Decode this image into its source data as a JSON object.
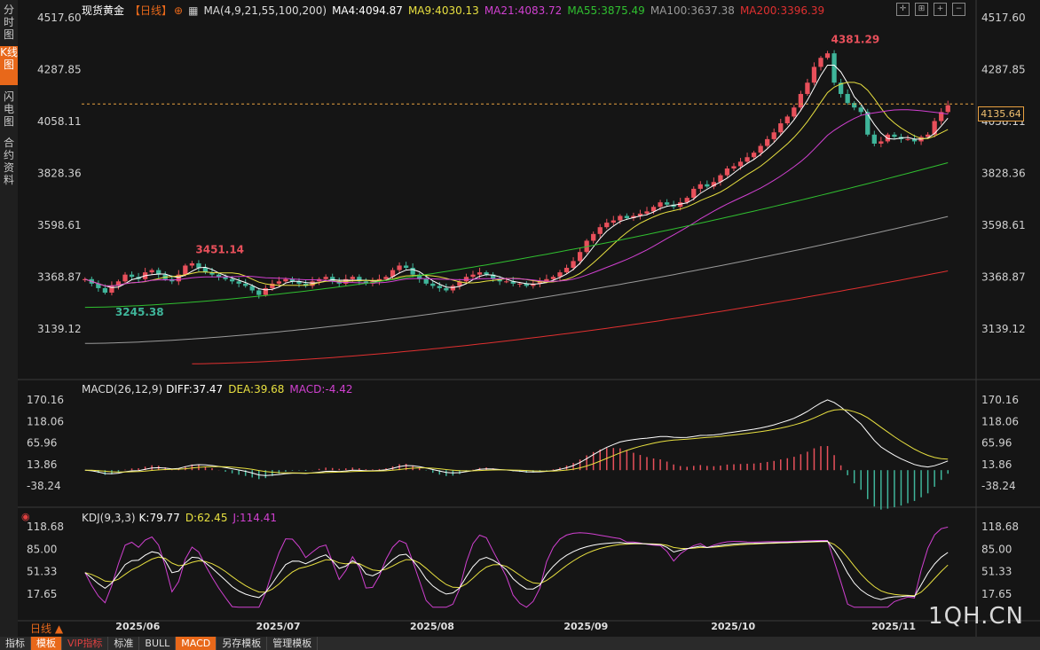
{
  "sidebar": {
    "tabs": [
      {
        "label": "分时图",
        "active": false
      },
      {
        "label": "K线图",
        "active": true
      },
      {
        "label": "闪电图",
        "active": false
      },
      {
        "label": "合约资料",
        "active": false
      }
    ]
  },
  "header": {
    "title": "现货黄金",
    "period_tag": "【日线】",
    "ma_label": "MA(4,9,21,55,100,200)",
    "ma4": "MA4:4094.87",
    "ma9": "MA9:4030.13",
    "ma21": "MA21:4083.72",
    "ma55": "MA55:3875.49",
    "ma100": "MA100:3637.38",
    "ma200": "MA200:3396.39"
  },
  "macd_header": {
    "label": "MACD(26,12,9)",
    "diff": "DIFF:37.47",
    "dea": "DEA:39.68",
    "macd": "MACD:-4.42"
  },
  "kdj_header": {
    "label": "KDJ(9,3,3)",
    "k": "K:79.77",
    "d": "D:62.45",
    "j": "J:114.41"
  },
  "current_price": "4135.64",
  "period_label": "日线 ▲",
  "watermark": "1QH.CN",
  "bottom_tabs": [
    {
      "label": "指标",
      "style": ""
    },
    {
      "label": "模板",
      "style": "hl"
    },
    {
      "label": "VIP指标",
      "style": "vip"
    },
    {
      "label": "标准",
      "style": ""
    },
    {
      "label": "BULL",
      "style": ""
    },
    {
      "label": "MACD",
      "style": "hl"
    },
    {
      "label": "另存模板",
      "style": ""
    },
    {
      "label": "管理模板",
      "style": ""
    }
  ],
  "colors": {
    "up": "#e8505b",
    "down": "#3fb59a",
    "ma4": "#ffffff",
    "ma9": "#e8e040",
    "ma21": "#d040d0",
    "ma55": "#30c030",
    "ma100": "#9a9a9a",
    "ma200": "#e03030",
    "diff": "#ffffff",
    "dea": "#e8e040",
    "j": "#d040d0"
  },
  "chart_data": {
    "type": "candlestick",
    "y_ticks": [
      "4517.60",
      "4287.85",
      "4058.11",
      "3828.36",
      "3598.61",
      "3368.87",
      "3139.12"
    ],
    "ylim": [
      3139.12,
      4517.6
    ],
    "x_ticks": [
      "2025/06",
      "2025/07",
      "2025/08",
      "2025/09",
      "2025/10",
      "2025/11"
    ],
    "annotations": [
      {
        "text": "4381.29",
        "value": 4381.29,
        "kind": "high"
      },
      {
        "text": "3451.14",
        "value": 3451.14,
        "kind": "high"
      },
      {
        "text": "3245.38",
        "value": 3245.38,
        "kind": "low"
      }
    ],
    "close_series": [
      3360,
      3340,
      3320,
      3300,
      3330,
      3350,
      3380,
      3370,
      3360,
      3390,
      3400,
      3380,
      3360,
      3350,
      3380,
      3420,
      3430,
      3410,
      3390,
      3380,
      3370,
      3360,
      3350,
      3340,
      3330,
      3310,
      3290,
      3320,
      3340,
      3350,
      3360,
      3350,
      3340,
      3330,
      3350,
      3360,
      3370,
      3350,
      3340,
      3360,
      3370,
      3350,
      3340,
      3350,
      3360,
      3370,
      3400,
      3420,
      3410,
      3380,
      3360,
      3340,
      3330,
      3320,
      3310,
      3330,
      3350,
      3370,
      3380,
      3390,
      3380,
      3360,
      3350,
      3350,
      3340,
      3340,
      3330,
      3340,
      3350,
      3360,
      3370,
      3390,
      3410,
      3440,
      3480,
      3530,
      3560,
      3590,
      3610,
      3620,
      3640,
      3630,
      3640,
      3650,
      3660,
      3680,
      3700,
      3690,
      3680,
      3700,
      3720,
      3760,
      3780,
      3770,
      3790,
      3820,
      3850,
      3860,
      3880,
      3900,
      3920,
      3950,
      3980,
      4010,
      4050,
      4080,
      4120,
      4180,
      4230,
      4300,
      4340,
      4360,
      4230,
      4180,
      4140,
      4120,
      4100,
      4000,
      3960,
      3970,
      4000,
      3990,
      3980,
      3980,
      3970,
      3990,
      4000,
      4060,
      4100,
      4130
    ],
    "ma4": 4094.87,
    "ma9": 4030.13,
    "ma21": 4083.72,
    "ma55": 3875.49,
    "ma100": 3637.38,
    "ma200": 3396.39,
    "macd": {
      "y_ticks": [
        "170.16",
        "118.06",
        "65.96",
        "13.86",
        "-38.24"
      ],
      "ylim": [
        -38.24,
        170.16
      ],
      "diff": 37.47,
      "dea": 39.68,
      "macd": -4.42
    },
    "kdj": {
      "y_ticks": [
        "118.68",
        "85.00",
        "51.33",
        "17.65"
      ],
      "ylim": [
        17.65,
        118.68
      ],
      "k": 79.77,
      "d": 62.45,
      "j": 114.41
    }
  }
}
